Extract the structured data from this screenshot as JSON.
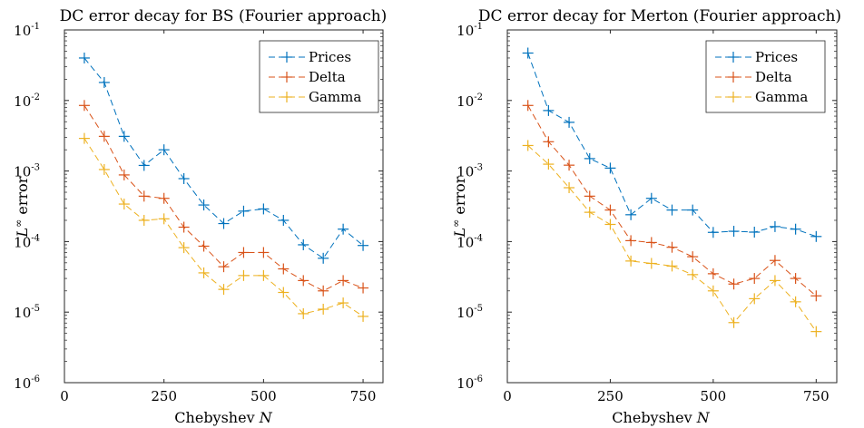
{
  "colors": {
    "prices": "#0072BD",
    "delta": "#D95319",
    "gamma": "#EDB120"
  },
  "chart_data": [
    {
      "type": "line",
      "title": "DC error decay for BS (Fourier approach)",
      "xlabel": "Chebyshev N",
      "ylabel": "L∞ error",
      "xlim": [
        0,
        800
      ],
      "ylim": [
        1e-06,
        0.1
      ],
      "yscale": "log",
      "xticks": [
        "0",
        "250",
        "500",
        "750"
      ],
      "yticks": [
        "10-6",
        "10-5",
        "10-4",
        "10-3",
        "10-2",
        "10-1"
      ],
      "legend_position": "top-right",
      "marker": "+",
      "line_style": "dashed",
      "x": [
        50,
        100,
        150,
        200,
        250,
        300,
        350,
        400,
        450,
        500,
        550,
        600,
        650,
        700,
        750
      ],
      "series": [
        {
          "name": "Prices",
          "values": [
            0.04,
            0.018,
            0.0031,
            0.0012,
            0.002,
            0.00078,
            0.00033,
            0.00018,
            0.00027,
            0.00029,
            0.0002,
            9e-05,
            5.8e-05,
            0.00015,
            8.8e-05
          ]
        },
        {
          "name": "Delta",
          "values": [
            0.0085,
            0.0031,
            0.00088,
            0.00044,
            0.00041,
            0.00016,
            8.6e-05,
            4.4e-05,
            7e-05,
            7e-05,
            4.1e-05,
            2.8e-05,
            2e-05,
            2.8e-05,
            2.2e-05
          ]
        },
        {
          "name": "Gamma",
          "values": [
            0.0029,
            0.00105,
            0.00034,
            0.0002,
            0.00021,
            8.2e-05,
            3.6e-05,
            2.1e-05,
            3.3e-05,
            3.3e-05,
            1.9e-05,
            9.5e-06,
            1.1e-05,
            1.35e-05,
            8.7e-06
          ]
        }
      ]
    },
    {
      "type": "line",
      "title": "DC error decay for Merton (Fourier approach)",
      "xlabel": "Chebyshev N",
      "ylabel": "L∞ error",
      "xlim": [
        0,
        800
      ],
      "ylim": [
        1e-06,
        0.1
      ],
      "yscale": "log",
      "xticks": [
        "0",
        "250",
        "500",
        "750"
      ],
      "yticks": [
        "10-6",
        "10-5",
        "10-4",
        "10-3",
        "10-2",
        "10-1"
      ],
      "legend_position": "top-right",
      "marker": "+",
      "line_style": "dashed",
      "x": [
        50,
        100,
        150,
        200,
        250,
        300,
        350,
        400,
        450,
        500,
        550,
        600,
        650,
        700,
        750
      ],
      "series": [
        {
          "name": "Prices",
          "values": [
            0.047,
            0.0072,
            0.0049,
            0.0015,
            0.0011,
            0.00024,
            0.00041,
            0.00028,
            0.00028,
            0.000135,
            0.00014,
            0.000136,
            0.000163,
            0.00015,
            0.000118
          ]
        },
        {
          "name": "Delta",
          "values": [
            0.0085,
            0.0026,
            0.00121,
            0.00044,
            0.00028,
            0.000103,
            9.7e-05,
            8.3e-05,
            6.1e-05,
            3.5e-05,
            2.5e-05,
            3e-05,
            5.4e-05,
            3e-05,
            1.7e-05
          ]
        },
        {
          "name": "Gamma",
          "values": [
            0.0023,
            0.00125,
            0.00058,
            0.00026,
            0.000175,
            5.3e-05,
            4.9e-05,
            4.5e-05,
            3.4e-05,
            2e-05,
            7.1e-06,
            1.55e-05,
            2.8e-05,
            1.4e-05,
            5.3e-06
          ]
        }
      ]
    }
  ]
}
